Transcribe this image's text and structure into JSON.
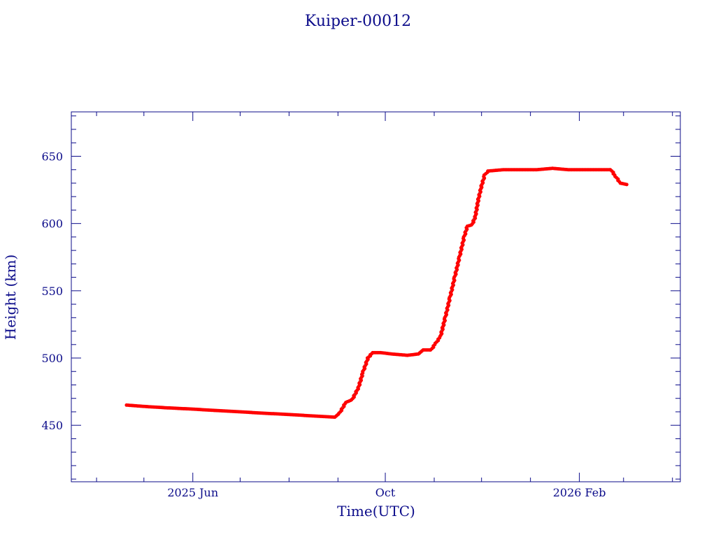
{
  "chart_data": {
    "type": "scatter",
    "title": "Kuiper-00012",
    "xlabel": "Time(UTC)",
    "ylabel": "Height (km)",
    "xlim": [
      "2025-03-16",
      "2026-04-06"
    ],
    "ylim": [
      408,
      683
    ],
    "x_tick_labels": [
      {
        "date": "2025-06-01",
        "label": "2025 Jun"
      },
      {
        "date": "2025-10-01",
        "label": "Oct"
      },
      {
        "date": "2026-02-01",
        "label": "2026 Feb"
      }
    ],
    "x_minor_ticks": [
      "2025-04-01",
      "2025-05-01",
      "2025-07-01",
      "2025-08-01",
      "2025-09-01",
      "2025-11-01",
      "2025-12-01",
      "2026-01-01",
      "2026-03-01",
      "2026-04-01"
    ],
    "y_ticks": [
      450,
      500,
      550,
      600,
      650
    ],
    "grid": false,
    "colors": {
      "axis": "#0b0b8a",
      "marker": "#ff0000",
      "secondary_marker": "#00e5e5",
      "line": "#333333"
    },
    "series": [
      {
        "points": [
          [
            "2025-04-20",
            465
          ],
          [
            "2025-05-01",
            464
          ],
          [
            "2025-05-15",
            463
          ],
          [
            "2025-06-01",
            462
          ],
          [
            "2025-06-15",
            461
          ],
          [
            "2025-07-01",
            460
          ],
          [
            "2025-07-15",
            459
          ],
          [
            "2025-08-01",
            458
          ],
          [
            "2025-08-15",
            457
          ],
          [
            "2025-08-30",
            456
          ],
          [
            "2025-09-02",
            459
          ],
          [
            "2025-09-06",
            467
          ],
          [
            "2025-09-10",
            469
          ],
          [
            "2025-09-14",
            478
          ],
          [
            "2025-09-17",
            490
          ],
          [
            "2025-09-20",
            500
          ],
          [
            "2025-09-23",
            504
          ],
          [
            "2025-09-28",
            504
          ],
          [
            "2025-10-05",
            503
          ],
          [
            "2025-10-15",
            502
          ],
          [
            "2025-10-22",
            503
          ],
          [
            "2025-10-25",
            506
          ],
          [
            "2025-10-30",
            506
          ],
          [
            "2025-11-02",
            511
          ],
          [
            "2025-11-05",
            516
          ],
          [
            "2025-11-08",
            530
          ],
          [
            "2025-11-11",
            545
          ],
          [
            "2025-11-14",
            560
          ],
          [
            "2025-11-17",
            575
          ],
          [
            "2025-11-20",
            590
          ],
          [
            "2025-11-22",
            598
          ],
          [
            "2025-11-25",
            599
          ],
          [
            "2025-11-27",
            605
          ],
          [
            "2025-11-29",
            618
          ],
          [
            "2025-12-01",
            628
          ],
          [
            "2025-12-03",
            636
          ],
          [
            "2025-12-05",
            639
          ],
          [
            "2025-12-15",
            640
          ],
          [
            "2025-12-25",
            640
          ],
          [
            "2026-01-05",
            640
          ],
          [
            "2026-01-15",
            641
          ],
          [
            "2026-01-25",
            640
          ],
          [
            "2026-02-05",
            640
          ],
          [
            "2026-02-15",
            640
          ],
          [
            "2026-02-21",
            640
          ],
          [
            "2026-02-24",
            635
          ],
          [
            "2026-02-27",
            630
          ],
          [
            "2026-03-03",
            629
          ]
        ]
      }
    ]
  }
}
